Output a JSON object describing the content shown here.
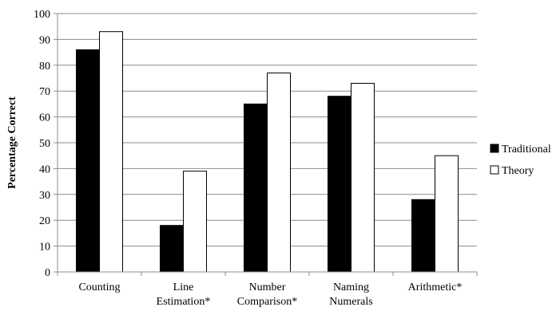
{
  "chart_data": {
    "type": "bar",
    "categories": [
      [
        "Counting"
      ],
      [
        "Line",
        "Estimation*"
      ],
      [
        "Number",
        "Comparison*"
      ],
      [
        "Naming",
        "Numerals"
      ],
      [
        "Arithmetic*"
      ]
    ],
    "series": [
      {
        "name": "Traditional",
        "color": "#000000",
        "values": [
          86,
          18,
          65,
          68,
          28
        ]
      },
      {
        "name": "Theory",
        "color": "#ffffff",
        "values": [
          93,
          39,
          77,
          73,
          45
        ]
      }
    ],
    "ylabel": "Percentage Correct",
    "xlabel": "",
    "ylim": [
      0,
      100
    ],
    "yticks": [
      0,
      10,
      20,
      30,
      40,
      50,
      60,
      70,
      80,
      90,
      100
    ],
    "grid": true,
    "legend_position": "right"
  }
}
